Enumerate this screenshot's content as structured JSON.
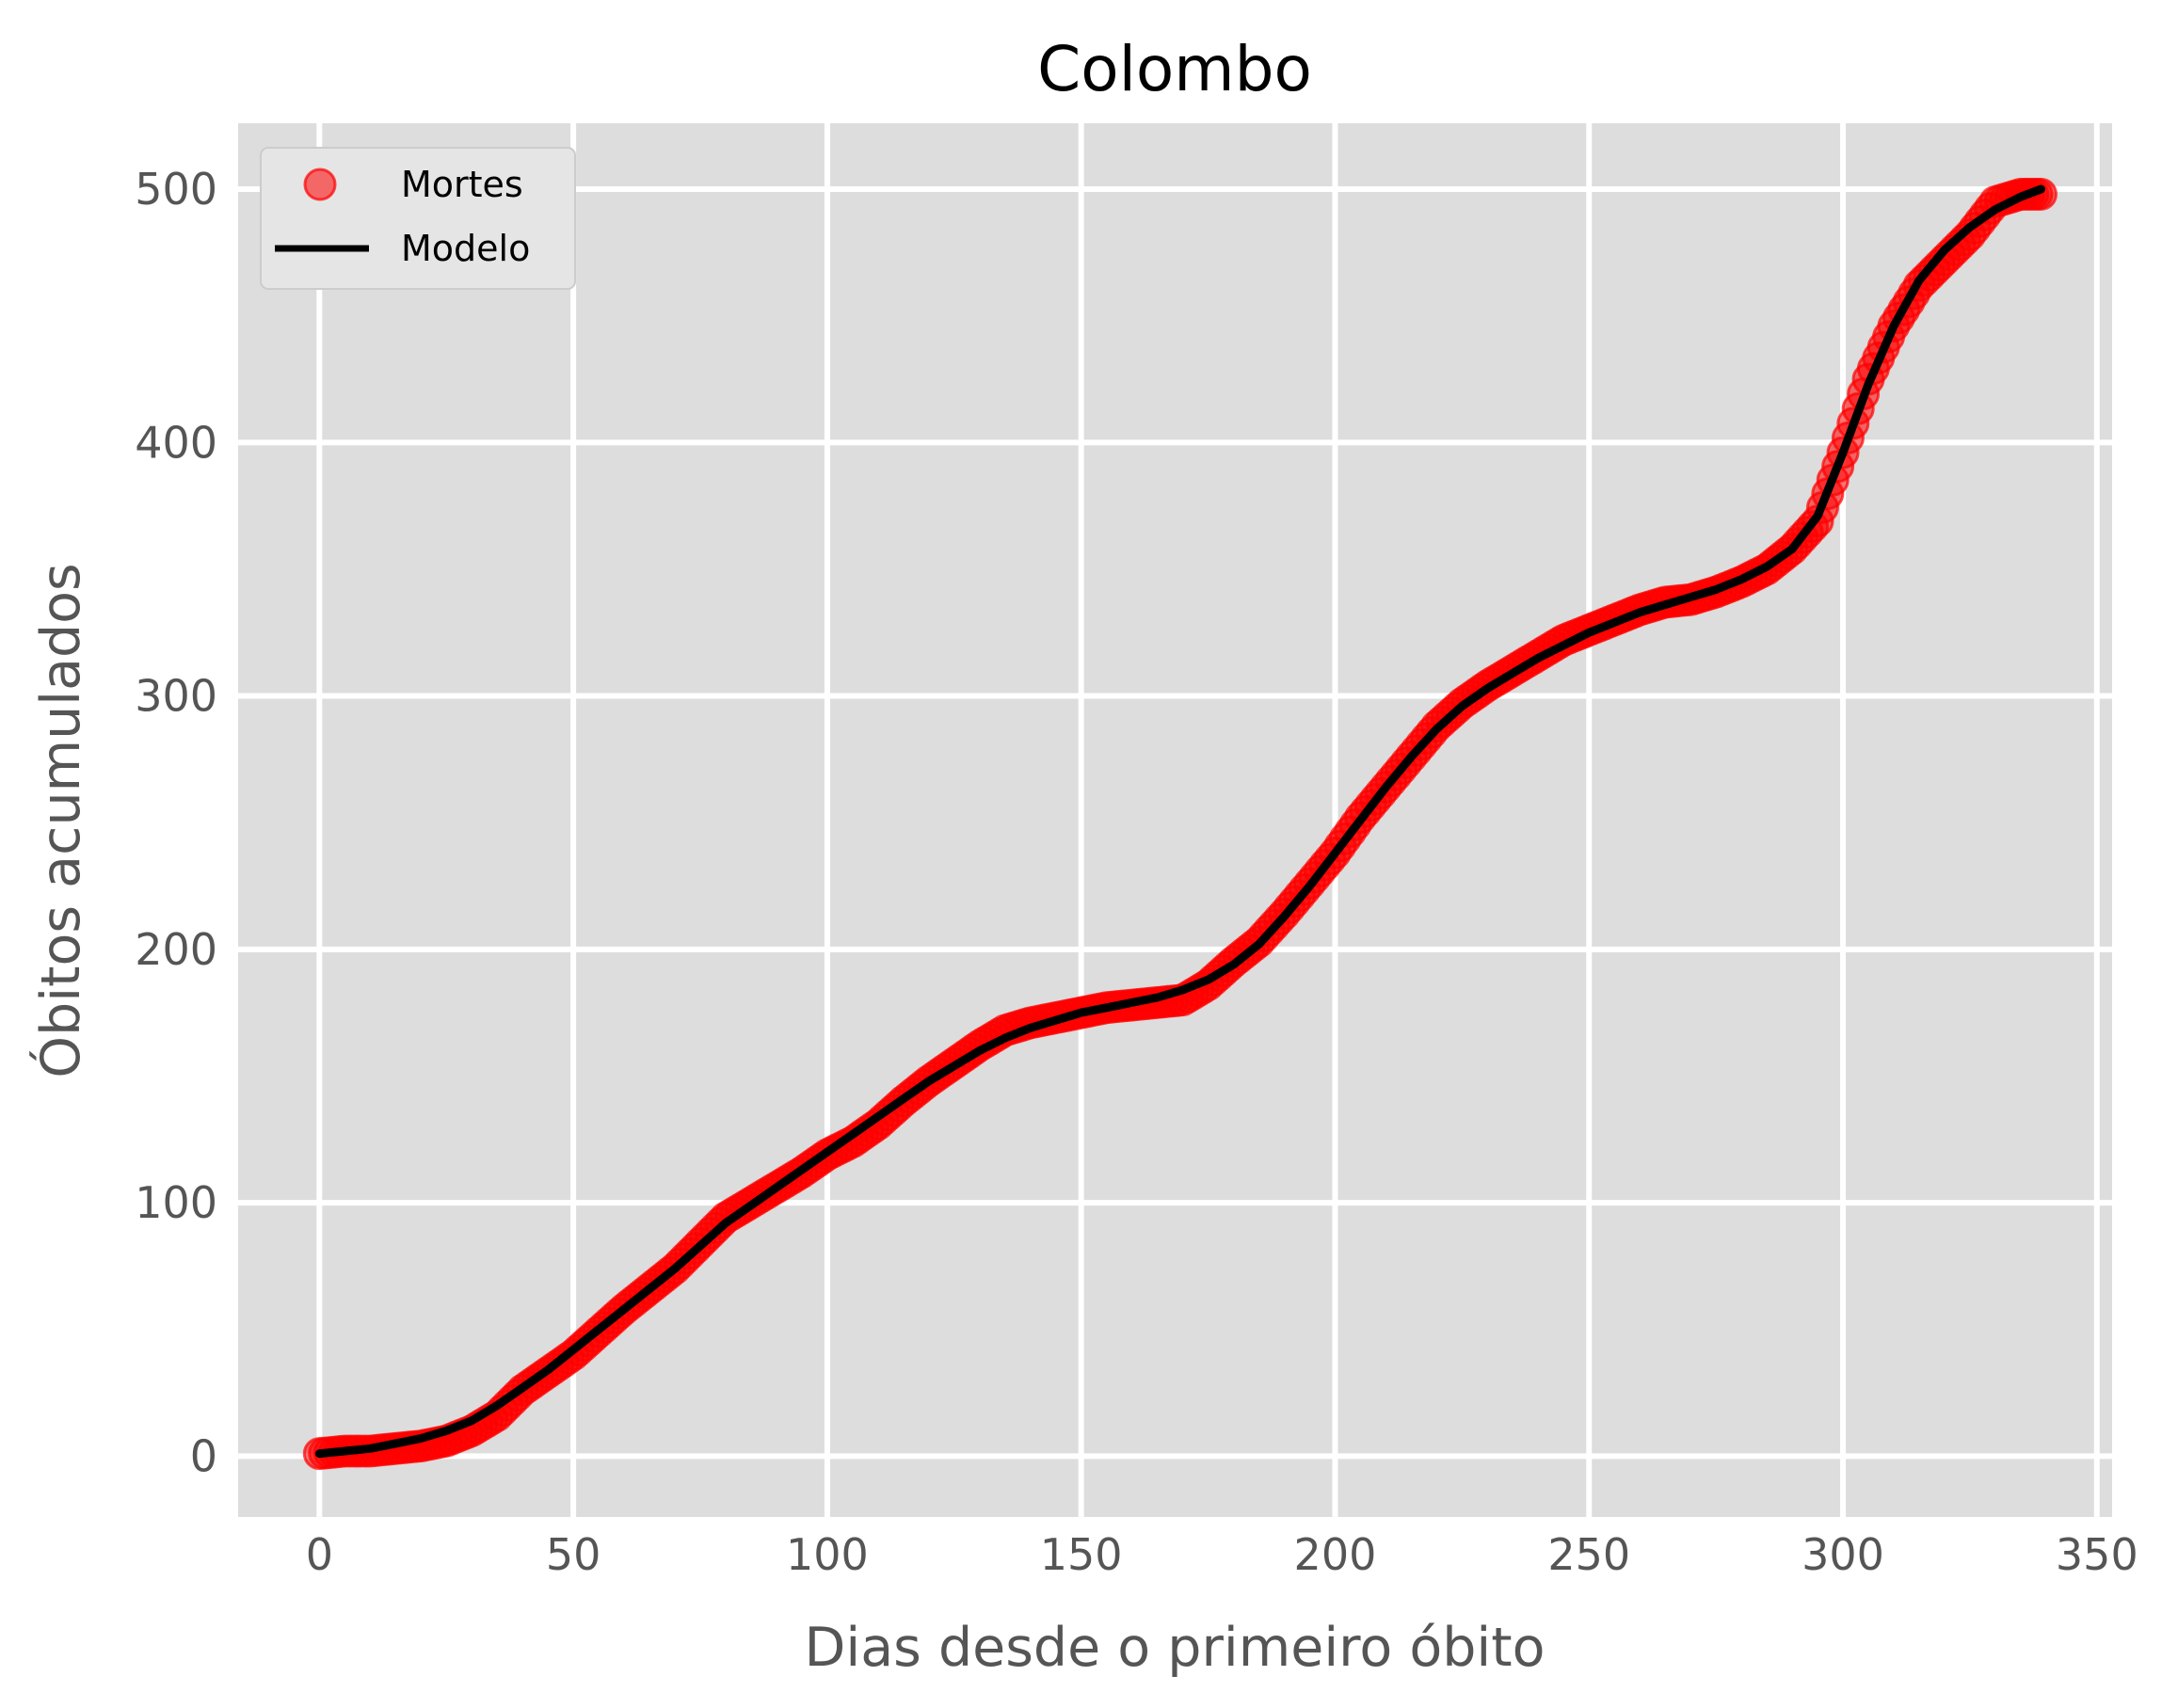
{
  "chart_data": {
    "type": "scatter",
    "title": "Colombo",
    "xlabel": "Dias desde o primeiro óbito",
    "ylabel": "Óbitos acumulados",
    "xlim": [
      -16,
      353
    ],
    "ylim": [
      -24,
      526
    ],
    "xticks": [
      0,
      50,
      100,
      150,
      200,
      250,
      300,
      350
    ],
    "yticks": [
      0,
      100,
      200,
      300,
      400,
      500
    ],
    "grid": true,
    "legend_position": "top-left",
    "series": [
      {
        "name": "Mortes",
        "kind": "points",
        "color": "#ff0000",
        "x": [
          0,
          5,
          10,
          15,
          20,
          25,
          30,
          35,
          40,
          45,
          50,
          55,
          60,
          65,
          70,
          75,
          80,
          85,
          90,
          95,
          100,
          105,
          110,
          115,
          120,
          125,
          130,
          135,
          140,
          145,
          150,
          155,
          160,
          165,
          170,
          175,
          180,
          185,
          190,
          195,
          200,
          205,
          210,
          215,
          220,
          225,
          230,
          235,
          240,
          245,
          250,
          255,
          260,
          265,
          270,
          275,
          280,
          285,
          290,
          295,
          300,
          305,
          310,
          315,
          320,
          325,
          330,
          335,
          339
        ],
        "y": [
          1,
          2,
          2,
          3,
          4,
          6,
          10,
          16,
          26,
          33,
          40,
          49,
          58,
          66,
          74,
          84,
          94,
          100,
          106,
          112,
          119,
          124,
          131,
          140,
          148,
          155,
          162,
          168,
          171,
          173,
          175,
          177,
          178,
          179,
          180,
          186,
          195,
          203,
          214,
          226,
          238,
          252,
          264,
          276,
          288,
          297,
          304,
          310,
          316,
          322,
          326,
          330,
          334,
          337,
          338,
          341,
          345,
          350,
          358,
          369,
          396,
          425,
          446,
          462,
          472,
          482,
          495,
          498,
          498
        ]
      },
      {
        "name": "Modelo",
        "kind": "line",
        "color": "#000000",
        "x": [
          0,
          5,
          10,
          15,
          20,
          25,
          30,
          35,
          40,
          45,
          50,
          55,
          60,
          65,
          70,
          75,
          80,
          85,
          90,
          95,
          100,
          105,
          110,
          115,
          120,
          125,
          130,
          135,
          140,
          145,
          150,
          155,
          160,
          165,
          170,
          175,
          180,
          185,
          190,
          195,
          200,
          205,
          210,
          215,
          220,
          225,
          230,
          235,
          240,
          245,
          250,
          255,
          260,
          265,
          270,
          275,
          280,
          285,
          290,
          295,
          300,
          305,
          310,
          315,
          320,
          325,
          330,
          335,
          339
        ],
        "y": [
          1,
          2,
          3,
          5,
          7,
          10,
          14,
          20,
          27,
          34,
          42,
          50,
          58,
          66,
          74,
          83,
          92,
          99,
          106,
          113,
          120,
          127,
          134,
          141,
          148,
          154,
          160,
          165,
          169,
          172,
          175,
          177,
          179,
          181,
          184,
          188,
          194,
          202,
          213,
          225,
          238,
          251,
          264,
          276,
          287,
          296,
          303,
          309,
          315,
          320,
          325,
          329,
          333,
          336,
          339,
          342,
          346,
          351,
          358,
          371,
          396,
          423,
          446,
          464,
          476,
          485,
          492,
          497,
          500
        ]
      }
    ]
  }
}
